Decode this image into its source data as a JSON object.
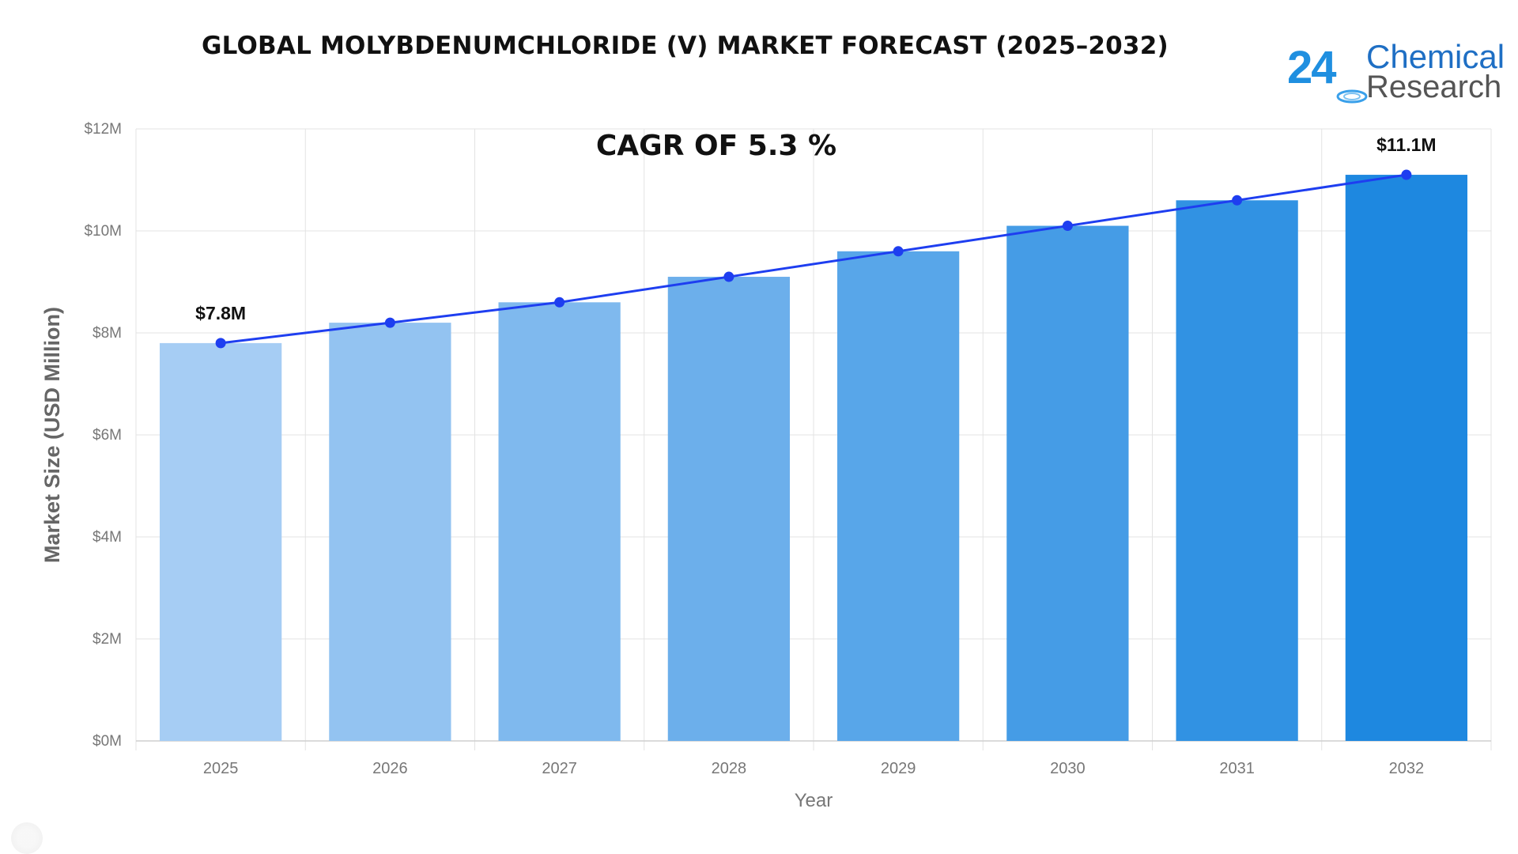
{
  "title": "GLOBAL MOLYBDENUMCHLORIDE (V) MARKET FORECAST (2025–2032)",
  "logo": {
    "number": "24",
    "line1": "Chemical",
    "line2": "Research"
  },
  "colors": {
    "line": "#1e3ef0",
    "bar_start": "#a6cdf4",
    "bar_end": "#1e88e0",
    "grid": "#e3e3e3",
    "tick": "#777777"
  },
  "chart_data": {
    "type": "bar",
    "annotation": "CAGR OF 5.3  %",
    "xlabel": "Year",
    "ylabel": "Market Size (USD Million)",
    "ylim": [
      0,
      12
    ],
    "yticks": [
      "$0M",
      "$2M",
      "$4M",
      "$6M",
      "$8M",
      "$10M",
      "$12M"
    ],
    "categories": [
      "2025",
      "2026",
      "2027",
      "2028",
      "2029",
      "2030",
      "2031",
      "2032"
    ],
    "values": [
      7.8,
      8.2,
      8.6,
      9.1,
      9.6,
      10.1,
      10.6,
      11.1
    ],
    "line_values": [
      7.8,
      8.2,
      8.6,
      9.1,
      9.6,
      10.1,
      10.6,
      11.1
    ],
    "data_labels": [
      {
        "index": 0,
        "text": "$7.8M"
      },
      {
        "index": 7,
        "text": "$11.1M"
      }
    ],
    "grid": true
  }
}
